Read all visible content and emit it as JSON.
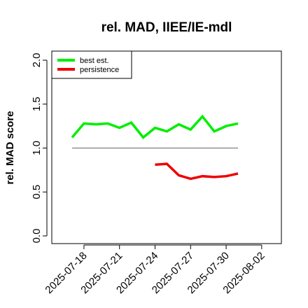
{
  "chart_data": {
    "type": "line",
    "title": "rel. MAD, IIEE/IE-mdl",
    "ylabel": "rel. MAD score",
    "xlabel": "",
    "ylim": [
      0.0,
      2.0
    ],
    "y_ticks": [
      "0.0",
      "0.5",
      "1.0",
      "1.5",
      "2.0"
    ],
    "xlim": [
      "2025-07-16",
      "2025-08-03"
    ],
    "x_ticks": [
      "2025-07-18",
      "2025-07-21",
      "2025-07-24",
      "2025-07-27",
      "2025-07-30",
      "2025-08-02"
    ],
    "reference_line": {
      "y": 1.0,
      "from": "2025-07-17",
      "to": "2025-07-31",
      "color": "#808080"
    },
    "legend_position": "top-left",
    "series": [
      {
        "name": "best est.",
        "color": "#00ee00",
        "x": [
          "2025-07-17",
          "2025-07-18",
          "2025-07-19",
          "2025-07-20",
          "2025-07-21",
          "2025-07-22",
          "2025-07-23",
          "2025-07-24",
          "2025-07-25",
          "2025-07-26",
          "2025-07-27",
          "2025-07-28",
          "2025-07-29",
          "2025-07-30",
          "2025-07-31"
        ],
        "values": [
          1.12,
          1.28,
          1.27,
          1.28,
          1.23,
          1.29,
          1.12,
          1.23,
          1.19,
          1.27,
          1.21,
          1.36,
          1.19,
          1.25,
          1.28
        ]
      },
      {
        "name": "persistence",
        "color": "#ee0000",
        "x": [
          "2025-07-24",
          "2025-07-25",
          "2025-07-26",
          "2025-07-27",
          "2025-07-28",
          "2025-07-29",
          "2025-07-30",
          "2025-07-31"
        ],
        "values": [
          0.81,
          0.82,
          0.69,
          0.65,
          0.68,
          0.67,
          0.68,
          0.71
        ]
      }
    ]
  }
}
